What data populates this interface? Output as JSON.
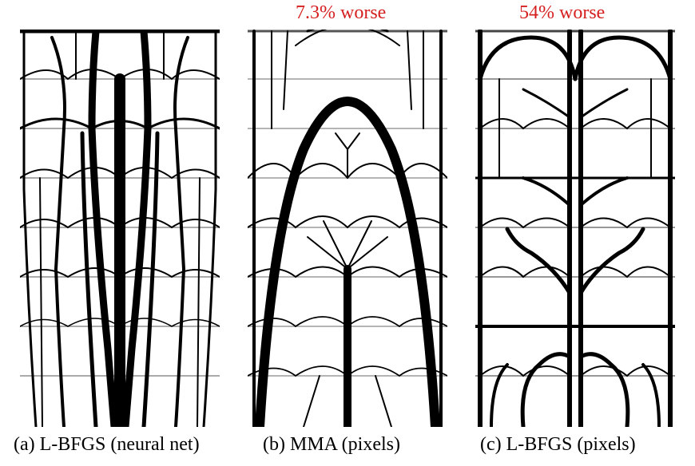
{
  "panels": [
    {
      "id": "a",
      "caption": "(a) L-BFGS (neural net)",
      "annotation": ""
    },
    {
      "id": "b",
      "caption": "(b) MMA (pixels)",
      "annotation": "7.3% worse"
    },
    {
      "id": "c",
      "caption": "(c) L-BFGS (pixels)",
      "annotation": "54% worse"
    }
  ],
  "colors": {
    "structure": "#000000",
    "annotation": "#d62020",
    "background": "#ffffff"
  }
}
